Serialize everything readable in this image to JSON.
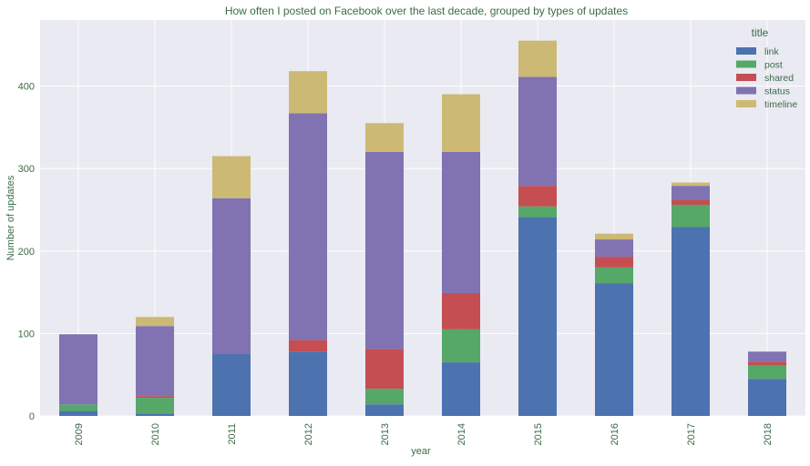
{
  "chart_data": {
    "type": "bar",
    "stacked": true,
    "title": "How often I posted on Facebook over the last decade, grouped by types of updates",
    "xlabel": "year",
    "ylabel": "Number of updates",
    "ylim": [
      0,
      480
    ],
    "yticks": [
      0,
      100,
      200,
      300,
      400
    ],
    "grid": true,
    "categories": [
      "2009",
      "2010",
      "2011",
      "2012",
      "2013",
      "2014",
      "2015",
      "2016",
      "2017",
      "2018"
    ],
    "series": [
      {
        "name": "link",
        "color": "#4c72b0",
        "values": [
          6,
          3,
          75,
          78,
          14,
          65,
          241,
          161,
          229,
          45
        ]
      },
      {
        "name": "post",
        "color": "#55a868",
        "values": [
          8,
          19,
          0,
          0,
          19,
          40,
          13,
          19,
          27,
          16
        ]
      },
      {
        "name": "shared",
        "color": "#c44e52",
        "values": [
          0,
          2,
          1,
          14,
          48,
          44,
          25,
          13,
          6,
          5
        ]
      },
      {
        "name": "status",
        "color": "#8172b2",
        "values": [
          85,
          85,
          188,
          275,
          239,
          171,
          132,
          21,
          17,
          12
        ]
      },
      {
        "name": "timeline",
        "color": "#ccb974",
        "values": [
          0,
          11,
          51,
          51,
          35,
          70,
          44,
          7,
          4,
          0
        ]
      }
    ],
    "legend": {
      "title": "title",
      "position": "top-right"
    }
  },
  "style": {
    "background": "#eaeaf2",
    "grid_color": "#ffffff",
    "text_color": "#3a6b46",
    "title_color": "#3a6b46"
  }
}
